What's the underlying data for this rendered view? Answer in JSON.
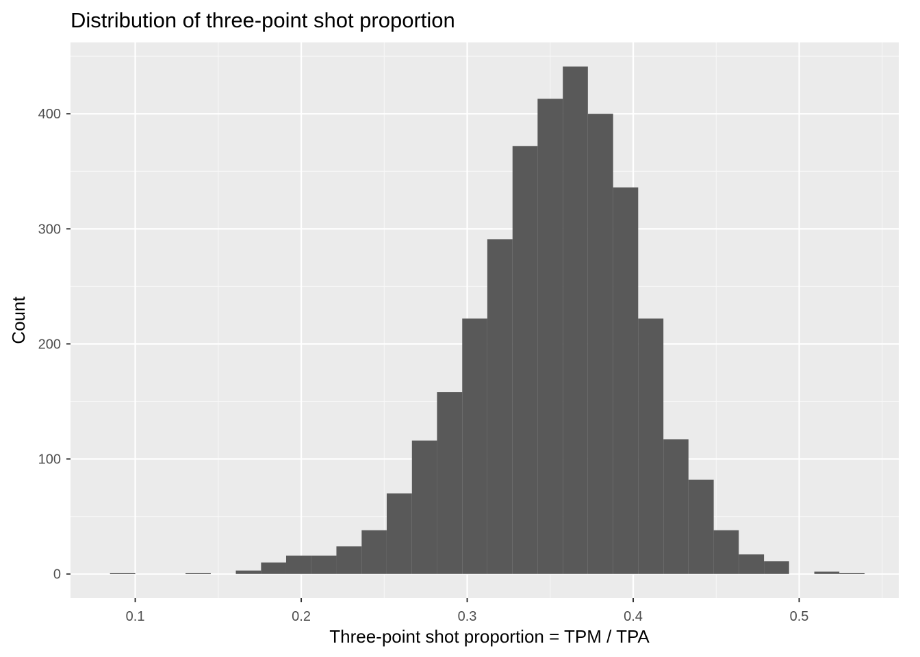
{
  "chart_data": {
    "type": "bar",
    "title": "Distribution of three-point shot proportion",
    "xlabel": "Three-point shot proportion = TPM / TPA",
    "ylabel": "Count",
    "xlim": [
      0.061,
      0.56
    ],
    "ylim": [
      -21,
      462
    ],
    "x_ticks": [
      0.1,
      0.2,
      0.3,
      0.4,
      0.5
    ],
    "x_tick_labels": [
      "0.1",
      "0.2",
      "0.3",
      "0.4",
      "0.5"
    ],
    "y_ticks": [
      0,
      100,
      200,
      300,
      400
    ],
    "y_tick_labels": [
      "0",
      "100",
      "200",
      "300",
      "400"
    ],
    "grid": true,
    "legend": "none",
    "bin_width": 0.0152,
    "bins": [
      {
        "x0": 0.0848,
        "x1": 0.1,
        "count": 1
      },
      {
        "x0": 0.1303,
        "x1": 0.1455,
        "count": 1
      },
      {
        "x0": 0.1606,
        "x1": 0.1758,
        "count": 3
      },
      {
        "x0": 0.1758,
        "x1": 0.1909,
        "count": 10
      },
      {
        "x0": 0.1909,
        "x1": 0.2061,
        "count": 16
      },
      {
        "x0": 0.2061,
        "x1": 0.2212,
        "count": 16
      },
      {
        "x0": 0.2212,
        "x1": 0.2364,
        "count": 24
      },
      {
        "x0": 0.2364,
        "x1": 0.2515,
        "count": 38
      },
      {
        "x0": 0.2515,
        "x1": 0.2667,
        "count": 70
      },
      {
        "x0": 0.2667,
        "x1": 0.2818,
        "count": 116
      },
      {
        "x0": 0.2818,
        "x1": 0.297,
        "count": 158
      },
      {
        "x0": 0.297,
        "x1": 0.3121,
        "count": 222
      },
      {
        "x0": 0.3121,
        "x1": 0.3273,
        "count": 291
      },
      {
        "x0": 0.3273,
        "x1": 0.3424,
        "count": 372
      },
      {
        "x0": 0.3424,
        "x1": 0.3576,
        "count": 413
      },
      {
        "x0": 0.3576,
        "x1": 0.3727,
        "count": 441
      },
      {
        "x0": 0.3727,
        "x1": 0.3879,
        "count": 400
      },
      {
        "x0": 0.3879,
        "x1": 0.403,
        "count": 336
      },
      {
        "x0": 0.403,
        "x1": 0.4182,
        "count": 222
      },
      {
        "x0": 0.4182,
        "x1": 0.4333,
        "count": 117
      },
      {
        "x0": 0.4333,
        "x1": 0.4485,
        "count": 82
      },
      {
        "x0": 0.4485,
        "x1": 0.4636,
        "count": 38
      },
      {
        "x0": 0.4636,
        "x1": 0.4788,
        "count": 17
      },
      {
        "x0": 0.4788,
        "x1": 0.4939,
        "count": 11
      },
      {
        "x0": 0.5091,
        "x1": 0.5242,
        "count": 2
      },
      {
        "x0": 0.5242,
        "x1": 0.5394,
        "count": 1
      }
    ],
    "colors": {
      "panel_background": "#EBEBEB",
      "grid_major": "#FFFFFF",
      "grid_minor": "#F7F7F7",
      "bar_fill": "#595959",
      "tick_text": "#4D4D4D"
    }
  }
}
